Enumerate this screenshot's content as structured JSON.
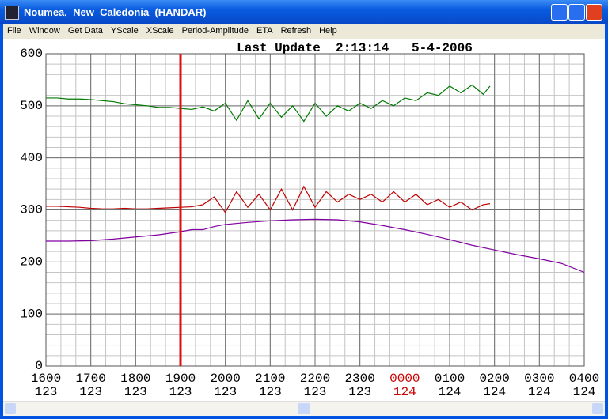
{
  "window": {
    "title": "Noumea,_New_Caledonia_(HANDAR)"
  },
  "menu": [
    "File",
    "Window",
    "Get Data",
    "YScale",
    "XScale",
    "Period-Amplitude",
    "ETA",
    "Refresh",
    "Help"
  ],
  "chart_data": {
    "type": "line",
    "title": "Last Update  2:13:14   5-4-2006",
    "xlim": [
      16,
      28
    ],
    "ylim": [
      0,
      600
    ],
    "xticks": [
      {
        "value": 16,
        "label": "1600"
      },
      {
        "value": 17,
        "label": "1700"
      },
      {
        "value": 18,
        "label": "1800"
      },
      {
        "value": 19,
        "label": "1900"
      },
      {
        "value": 20,
        "label": "2000"
      },
      {
        "value": 21,
        "label": "2100"
      },
      {
        "value": 22,
        "label": "2200"
      },
      {
        "value": 23,
        "label": "2300"
      },
      {
        "value": 24,
        "label": "0000"
      },
      {
        "value": 25,
        "label": "0100"
      },
      {
        "value": 26,
        "label": "0200"
      },
      {
        "value": 27,
        "label": "0300"
      },
      {
        "value": 28,
        "label": "0400"
      }
    ],
    "xtick_days": [
      "123",
      "123",
      "123",
      "123",
      "123",
      "123",
      "123",
      "123",
      "124",
      "124",
      "124",
      "124",
      "124"
    ],
    "highlight_ticks": [
      24
    ],
    "highlight_color": "#cc0000",
    "yticks": [
      0,
      100,
      200,
      300,
      400,
      500,
      600
    ],
    "grid": true,
    "minor_xstep": 0.3333333,
    "minor_ystep": 20,
    "markers": [
      {
        "x": 19,
        "color": "#d81010"
      }
    ],
    "series": [
      {
        "color": "#007a00",
        "x": [
          16,
          16.25,
          16.5,
          16.75,
          17,
          17.25,
          17.5,
          17.75,
          18,
          18.25,
          18.5,
          18.75,
          19,
          19.25,
          19.5,
          19.75,
          20,
          20.25,
          20.5,
          20.75,
          21,
          21.25,
          21.5,
          21.75,
          22,
          22.25,
          22.5,
          22.75,
          23,
          23.25,
          23.5,
          23.75,
          24,
          24.25,
          24.5,
          24.75,
          25,
          25.25,
          25.5,
          25.75,
          25.9
        ],
        "values": [
          515,
          515,
          513,
          513,
          512,
          510,
          508,
          504,
          502,
          500,
          497,
          497,
          495,
          493,
          498,
          490,
          505,
          472,
          510,
          475,
          505,
          478,
          500,
          470,
          505,
          480,
          500,
          490,
          505,
          495,
          510,
          500,
          515,
          510,
          525,
          520,
          538,
          525,
          540,
          522,
          538
        ]
      },
      {
        "color": "#c00000",
        "x": [
          16,
          16.25,
          16.5,
          16.75,
          17,
          17.25,
          17.5,
          17.75,
          18,
          18.25,
          18.5,
          18.75,
          19,
          19.25,
          19.5,
          19.75,
          20,
          20.25,
          20.5,
          20.75,
          21,
          21.25,
          21.5,
          21.75,
          22,
          22.25,
          22.5,
          22.75,
          23,
          23.25,
          23.5,
          23.75,
          24,
          24.25,
          24.5,
          24.75,
          25,
          25.25,
          25.5,
          25.75,
          25.9
        ],
        "values": [
          307,
          307,
          306,
          305,
          303,
          302,
          302,
          303,
          302,
          302,
          303,
          304,
          305,
          306,
          310,
          325,
          295,
          335,
          305,
          330,
          300,
          340,
          300,
          345,
          305,
          335,
          315,
          330,
          320,
          330,
          315,
          335,
          315,
          330,
          310,
          320,
          305,
          315,
          300,
          310,
          312
        ]
      },
      {
        "color": "#8000a0",
        "x": [
          16,
          16.5,
          17,
          17.5,
          18,
          18.5,
          19,
          19.25,
          19.5,
          19.75,
          20,
          20.5,
          21,
          21.5,
          22,
          22.5,
          23,
          23.5,
          24,
          24.5,
          25,
          25.5,
          26,
          26.5,
          27,
          27.5,
          28
        ],
        "values": [
          240,
          240,
          241,
          244,
          248,
          252,
          258,
          262,
          262,
          268,
          272,
          276,
          279,
          281,
          282,
          281,
          277,
          270,
          262,
          253,
          243,
          232,
          223,
          214,
          206,
          197,
          180
        ]
      }
    ]
  }
}
